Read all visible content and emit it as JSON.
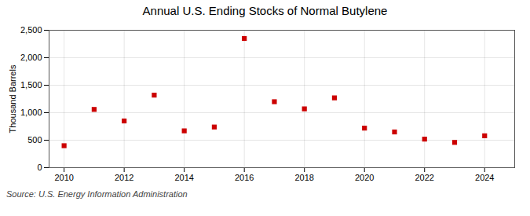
{
  "chart_data": {
    "type": "scatter",
    "title": "Annual U.S. Ending Stocks of Normal Butylene",
    "ylabel": "Thousand Barrels",
    "annotations": [
      "Source: U.S. Energy Information Administration"
    ],
    "x": [
      2010,
      2011,
      2012,
      2013,
      2014,
      2015,
      2016,
      2017,
      2018,
      2019,
      2020,
      2021,
      2022,
      2023,
      2024
    ],
    "values": [
      400,
      1060,
      850,
      1320,
      670,
      740,
      2350,
      1200,
      1070,
      1270,
      720,
      650,
      520,
      460,
      580
    ],
    "color": "#cc0000",
    "marker": "square",
    "xlim": [
      2009.5,
      2025.0
    ],
    "xticks": [
      2010,
      2012,
      2014,
      2016,
      2018,
      2020,
      2022,
      2024
    ],
    "ylim": [
      0,
      2500
    ],
    "yticks": [
      0,
      500,
      {
        "value": 1000,
        "label": "1,000"
      },
      {
        "value": 1500,
        "label": "1,500"
      },
      {
        "value": 2000,
        "label": "2,000"
      },
      {
        "value": 2500,
        "label": "2,500"
      }
    ],
    "grid": true
  }
}
